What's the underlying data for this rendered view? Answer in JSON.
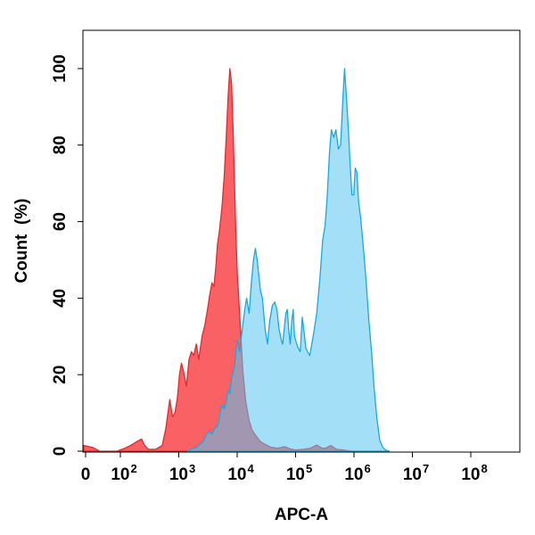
{
  "chart_data": {
    "type": "area",
    "xlabel": "APC-A",
    "ylabel": "Count  (%)",
    "y_ticks": [
      {
        "value": 0,
        "label": "0"
      },
      {
        "value": 20,
        "label": "20"
      },
      {
        "value": 40,
        "label": "40"
      },
      {
        "value": 60,
        "label": "60"
      },
      {
        "value": 80,
        "label": "80"
      },
      {
        "value": 100,
        "label": "100"
      }
    ],
    "x_scale": "biexponential",
    "x_ticks": [
      {
        "value": 0,
        "label": "0",
        "exp": ""
      },
      {
        "value": 100,
        "label": "10",
        "exp": "2"
      },
      {
        "value": 1000,
        "label": "10",
        "exp": "3"
      },
      {
        "value": 10000,
        "label": "10",
        "exp": "4"
      },
      {
        "value": 100000,
        "label": "10",
        "exp": "5"
      },
      {
        "value": 1000000,
        "label": "10",
        "exp": "6"
      },
      {
        "value": 10000000,
        "label": "10",
        "exp": "7"
      },
      {
        "value": 100000000,
        "label": "10",
        "exp": "8"
      }
    ],
    "ylim": [
      0,
      110
    ],
    "grid": false,
    "series": [
      {
        "color": "#fa6165",
        "stroke": "#e02b2f",
        "points": [
          [
            -80,
            0
          ],
          [
            -10,
            1.5
          ],
          [
            20,
            1
          ],
          [
            40,
            0
          ],
          [
            50,
            0
          ],
          [
            90,
            0
          ],
          [
            120,
            0.8
          ],
          [
            150,
            1.5
          ],
          [
            190,
            2.5
          ],
          [
            230,
            3.2
          ],
          [
            260,
            1.5
          ],
          [
            300,
            0.5
          ],
          [
            400,
            0.5
          ],
          [
            520,
            1.5
          ],
          [
            600,
            6
          ],
          [
            700,
            13.5
          ],
          [
            780,
            9
          ],
          [
            860,
            10
          ],
          [
            950,
            14
          ],
          [
            1030,
            20
          ],
          [
            1110,
            23
          ],
          [
            1200,
            21
          ],
          [
            1350,
            17
          ],
          [
            1500,
            24
          ],
          [
            1650,
            26
          ],
          [
            1800,
            25
          ],
          [
            2000,
            28
          ],
          [
            2200,
            24
          ],
          [
            2500,
            30
          ],
          [
            2800,
            33
          ],
          [
            3100,
            37
          ],
          [
            3400,
            41
          ],
          [
            3700,
            44
          ],
          [
            4000,
            43
          ],
          [
            4300,
            48
          ],
          [
            4600,
            54
          ],
          [
            5000,
            58
          ],
          [
            5500,
            64
          ],
          [
            6000,
            72
          ],
          [
            6500,
            82
          ],
          [
            7000,
            93
          ],
          [
            7500,
            100
          ],
          [
            8000,
            96
          ],
          [
            8500,
            84
          ],
          [
            9000,
            70
          ],
          [
            9500,
            57
          ],
          [
            10000,
            47
          ],
          [
            11000,
            36
          ],
          [
            12500,
            21
          ],
          [
            14000,
            13
          ],
          [
            16000,
            8
          ],
          [
            18000,
            5.5
          ],
          [
            21000,
            4
          ],
          [
            25000,
            2.5
          ],
          [
            30000,
            1.8
          ],
          [
            38000,
            1
          ],
          [
            50000,
            0.8
          ],
          [
            65000,
            1.2
          ],
          [
            80000,
            0.6
          ],
          [
            100000,
            0.3
          ],
          [
            140000,
            0.5
          ],
          [
            180000,
            0.8
          ],
          [
            230000,
            1.6
          ],
          [
            280000,
            0.8
          ],
          [
            330000,
            0.8
          ],
          [
            400000,
            1.5
          ],
          [
            500000,
            0.5
          ],
          [
            650000,
            0.3
          ],
          [
            900000,
            0
          ]
        ]
      },
      {
        "color": "#58c4ee",
        "stroke": "#1ba8e0",
        "points": [
          [
            1400,
            0
          ],
          [
            1600,
            0.5
          ],
          [
            2000,
            1
          ],
          [
            2600,
            2.5
          ],
          [
            3000,
            4.5
          ],
          [
            3300,
            5
          ],
          [
            3700,
            4.5
          ],
          [
            4100,
            6
          ],
          [
            4600,
            6.5
          ],
          [
            5000,
            9
          ],
          [
            5400,
            12
          ],
          [
            6000,
            11
          ],
          [
            6500,
            13
          ],
          [
            7000,
            16
          ],
          [
            7500,
            15
          ],
          [
            8000,
            19
          ],
          [
            9000,
            22
          ],
          [
            10000,
            29
          ],
          [
            11000,
            26
          ],
          [
            12000,
            31
          ],
          [
            13500,
            37
          ],
          [
            14500,
            40
          ],
          [
            16000,
            36
          ],
          [
            17500,
            44
          ],
          [
            19000,
            50
          ],
          [
            20500,
            53
          ],
          [
            22000,
            50
          ],
          [
            25000,
            42
          ],
          [
            27000,
            40
          ],
          [
            30000,
            32
          ],
          [
            33000,
            28
          ],
          [
            36000,
            34
          ],
          [
            40000,
            38
          ],
          [
            44000,
            39
          ],
          [
            48000,
            37
          ],
          [
            52000,
            32
          ],
          [
            57000,
            29
          ],
          [
            60000,
            28
          ],
          [
            64000,
            32
          ],
          [
            68000,
            36
          ],
          [
            72000,
            37
          ],
          [
            76000,
            32
          ],
          [
            81000,
            28
          ],
          [
            86000,
            34
          ],
          [
            91000,
            37
          ],
          [
            96000,
            30
          ],
          [
            110000,
            27
          ],
          [
            120000,
            26
          ],
          [
            130000,
            35
          ],
          [
            140000,
            31
          ],
          [
            150000,
            27
          ],
          [
            160000,
            26
          ],
          [
            175000,
            25
          ],
          [
            200000,
            30
          ],
          [
            230000,
            36
          ],
          [
            260000,
            45
          ],
          [
            290000,
            55
          ],
          [
            320000,
            59
          ],
          [
            350000,
            67
          ],
          [
            380000,
            78
          ],
          [
            410000,
            84
          ],
          [
            450000,
            82
          ],
          [
            490000,
            84
          ],
          [
            540000,
            79
          ],
          [
            590000,
            80
          ],
          [
            640000,
            91
          ],
          [
            690000,
            100
          ],
          [
            740000,
            93
          ],
          [
            800000,
            84
          ],
          [
            860000,
            75
          ],
          [
            920000,
            67
          ],
          [
            990000,
            67
          ],
          [
            1050000,
            74
          ],
          [
            1120000,
            73
          ],
          [
            1200000,
            65
          ],
          [
            1300000,
            61
          ],
          [
            1450000,
            53
          ],
          [
            1600000,
            45
          ],
          [
            1800000,
            34
          ],
          [
            2000000,
            26
          ],
          [
            2200000,
            17
          ],
          [
            2450000,
            9
          ],
          [
            2750000,
            3
          ],
          [
            3100000,
            1
          ],
          [
            3500000,
            0.3
          ],
          [
            4000000,
            0
          ]
        ]
      }
    ]
  }
}
